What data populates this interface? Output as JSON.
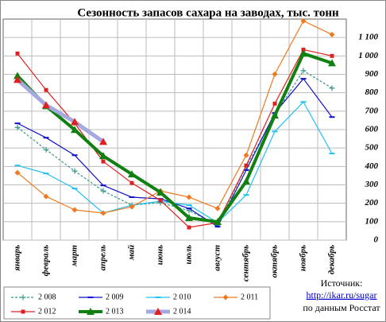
{
  "chart_data": {
    "type": "line",
    "title": "Сезонность  запасов сахара на заводах, тыс. тонн",
    "categories": [
      "январь",
      "февраль",
      "март",
      "апрель",
      "май",
      "июнь",
      "июль",
      "август",
      "сентябрь",
      "октябрь",
      "ноябрь",
      "декабрь"
    ],
    "ylim": [
      0,
      1200
    ],
    "yticks": [
      0,
      100,
      200,
      300,
      400,
      500,
      600,
      700,
      800,
      900,
      {
        "value": 1000,
        "label": "1 000"
      },
      {
        "value": 1100,
        "label": "1 100"
      }
    ],
    "grid": true,
    "legend": "bottom",
    "series": [
      {
        "name": "2 008",
        "color": "#3a9a8a",
        "marker": "plus",
        "dashed": true,
        "values": [
          612,
          491,
          375,
          267,
          190,
          203,
          160,
          82,
          400,
          680,
          920,
          825
        ]
      },
      {
        "name": "2 009",
        "color": "#1010cc",
        "marker": "dash",
        "values": [
          634,
          556,
          461,
          297,
          233,
          224,
          172,
          73,
          380,
          690,
          876,
          668
        ]
      },
      {
        "name": "2 010",
        "color": "#20c0f0",
        "marker": "dash",
        "values": [
          405,
          362,
          280,
          147,
          190,
          211,
          190,
          95,
          245,
          590,
          750,
          470
        ]
      },
      {
        "name": "2 011",
        "color": "#f07820",
        "marker": "diamond",
        "values": [
          366,
          237,
          164,
          147,
          181,
          267,
          233,
          172,
          461,
          901,
          1190,
          1116
        ]
      },
      {
        "name": "2 012",
        "color": "#e02020",
        "marker": "square",
        "values": [
          1013,
          815,
          634,
          427,
          310,
          216,
          69,
          95,
          405,
          741,
          1034,
          1000
        ]
      },
      {
        "name": "2 013",
        "color": "#108010",
        "marker": "triangle",
        "line_width": 4,
        "values": [
          892,
          728,
          599,
          457,
          358,
          259,
          121,
          99,
          319,
          677,
          1013,
          961
        ]
      },
      {
        "name": "2 014",
        "color": "#a8a8e0",
        "marker": "triangle",
        "marker_color": "#e02020",
        "line_width": 5,
        "values": [
          871,
          733,
          642,
          534,
          null,
          null,
          null,
          null,
          null,
          null,
          null,
          null
        ]
      }
    ],
    "source": [
      "Источник:",
      "http://ikar.ru/sugar",
      "по данным Росстат"
    ]
  }
}
